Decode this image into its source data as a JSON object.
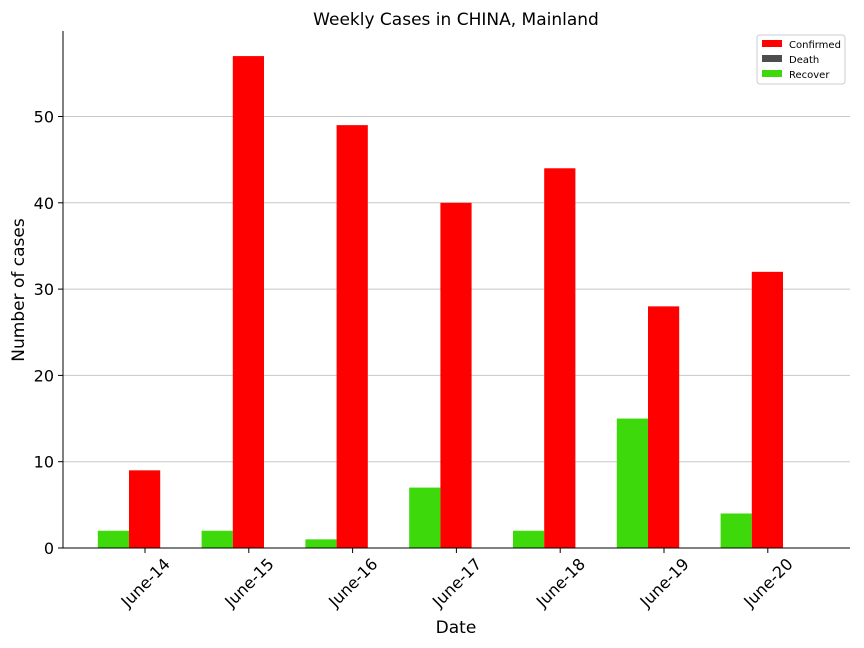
{
  "chart_data": {
    "type": "bar",
    "title": "Weekly Cases in CHINA, Mainland",
    "xlabel": "Date",
    "ylabel": "Number of cases",
    "categories": [
      "June-14",
      "June-15",
      "June-16",
      "June-17",
      "June-18",
      "June-19",
      "June-20"
    ],
    "series": [
      {
        "name": "Confirmed",
        "color": "#ff0000",
        "values": [
          9,
          57,
          49,
          40,
          44,
          28,
          32
        ]
      },
      {
        "name": "Death",
        "color": "#4d4d4d",
        "values": [
          0,
          0,
          0,
          0,
          0,
          0,
          0
        ]
      },
      {
        "name": "Recover",
        "color": "#3dd90a",
        "values": [
          2,
          2,
          1,
          7,
          2,
          15,
          4
        ]
      }
    ],
    "ylim": [
      0,
      60
    ],
    "yticks": [
      0,
      10,
      20,
      30,
      40,
      50
    ],
    "grid": "horizontal",
    "legend_position": "top-right"
  }
}
